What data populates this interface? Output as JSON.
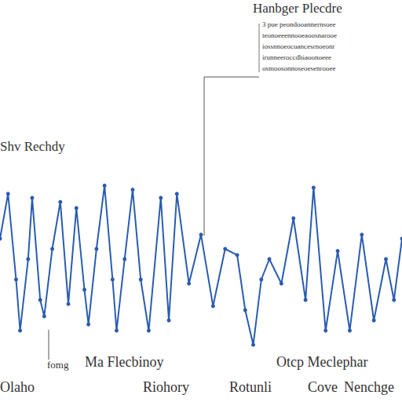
{
  "chart_data": {
    "type": "line",
    "title": "Hanbger Plecdre",
    "annotations": [
      "3 pue peondooannernsoee",
      "teonoeeennooeaoosnarooe",
      "iossnnoeocuancesrnoeonr",
      "irunneeroccdhiaoonoeee",
      "osmoosonnoseoesenrooee",
      "Shv Rechdy",
      "fomg",
      "Ma Flecbinoy",
      "Otcp Meclephar",
      "Olaho",
      "Riohory",
      "Rotunli",
      "Cove",
      "Nenchge"
    ],
    "tick_labels": false,
    "grid": false,
    "xlim": [
      0,
      100
    ],
    "ylim": [
      0,
      100
    ],
    "series": [
      {
        "name": "Shv Rechdy",
        "color": "#2a5cb0",
        "marker": "circle",
        "line_style": "solid",
        "x": [
          0,
          2,
          4,
          5,
          7,
          8,
          10,
          11,
          13,
          15,
          17,
          19,
          21,
          22,
          24,
          26,
          28,
          29,
          31,
          33,
          35,
          37,
          40,
          42,
          44,
          47,
          50,
          53,
          56,
          59,
          61,
          63,
          65,
          67,
          70,
          73,
          76,
          78,
          81,
          84,
          87,
          90,
          93,
          96,
          98,
          100
        ],
        "values": [
          60,
          82,
          40,
          15,
          50,
          80,
          30,
          22,
          55,
          78,
          28,
          75,
          35,
          18,
          55,
          86,
          40,
          15,
          50,
          84,
          40,
          15,
          80,
          20,
          82,
          38,
          62,
          27,
          55,
          52,
          25,
          8,
          40,
          50,
          38,
          70,
          30,
          85,
          15,
          54,
          15,
          62,
          20,
          50,
          30,
          60
        ]
      }
    ]
  }
}
